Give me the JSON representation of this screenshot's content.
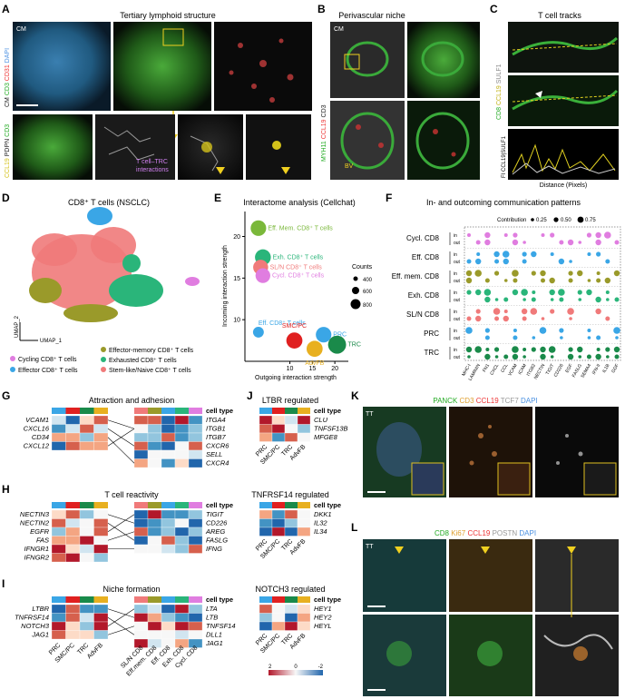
{
  "panels": {
    "A": {
      "letter": "A",
      "title": "Tertiary lymphoid structure",
      "stain_top": [
        {
          "t": "CM",
          "c": "#ffffff"
        },
        {
          "t": "CD3",
          "c": "#22aa22"
        },
        {
          "t": "CD31",
          "c": "#ee3333"
        },
        {
          "t": "DAPI",
          "c": "#4a90e2"
        }
      ],
      "stain_bottom": [
        {
          "t": "CCL19",
          "c": "#d4c21a"
        },
        {
          "t": "PDPN",
          "c": "#ffffff"
        },
        {
          "t": "CD3",
          "c": "#22aa22"
        }
      ],
      "cm_label": "CM",
      "interaction_label_1": "T cell–TRC",
      "interaction_label_2": "interactions"
    },
    "B": {
      "letter": "B",
      "title": "Perivascular niche",
      "stain": [
        {
          "t": "MYH11",
          "c": "#22aa22"
        },
        {
          "t": "CCL19",
          "c": "#ee3333"
        },
        {
          "t": "CD3",
          "c": "#ffffff"
        }
      ],
      "cm_label": "CM",
      "bv_label": "BV"
    },
    "C": {
      "letter": "C",
      "title": "T cell tracks",
      "stain": [
        {
          "t": "CD8",
          "c": "#22aa22"
        },
        {
          "t": "CCL19",
          "c": "#d4c21a"
        },
        {
          "t": "SULF1",
          "c": "#ffffff"
        }
      ],
      "fi_label": "FI CCL19|SULF1",
      "x_label": "Distance (Pixels)"
    },
    "D": {
      "letter": "D",
      "title": "CD8⁺ T cells (NSCLC)",
      "umap1": "UMAP_1",
      "umap2": "UMAP_2",
      "legend": [
        {
          "label": "Cycling CD8⁺ T cells",
          "color": "#e07de0"
        },
        {
          "label": "Effector-memory CD8⁺ T cells",
          "color": "#9a9a2a"
        },
        {
          "label": "Effector CD8⁺ T cells",
          "color": "#3aa6e6"
        },
        {
          "label": "Exhausted CD8⁺ T cells",
          "color": "#2ab57a"
        },
        {
          "label": "Stem-like/Naive CD8⁺ T cells",
          "color": "#f07a7a"
        }
      ]
    },
    "E": {
      "letter": "E",
      "title": "Interactome analysis (Cellchat)",
      "xlabel": "Outgoing interaction strength",
      "ylabel": "Incoming interaction strength",
      "counts_title": "Counts",
      "counts": [
        "400",
        "600",
        "800"
      ]
    },
    "F": {
      "letter": "F",
      "title": "In- and outcoming communication patterns",
      "contribution_label": "Contribution",
      "contrib_values": [
        "0.25",
        "0.50",
        "0.75"
      ],
      "rows": [
        "Cycl. CD8",
        "Eff. CD8",
        "Eff. mem. CD8",
        "Exh. CD8",
        "SL/N CD8",
        "PRC",
        "TRC"
      ],
      "row_colors": [
        "#e07de0",
        "#3aa6e6",
        "#9a9a2a",
        "#2ab57a",
        "#f07a7a",
        "#3aa6e6",
        "#1a8a4a"
      ],
      "genes": [
        "MHC-I",
        "LAMININ",
        "FN1",
        "CXCL",
        "CCL",
        "VCAM",
        "ICAM",
        "ITGB2",
        "NECTIN",
        "TIGIT",
        "CD226",
        "EGF",
        "FASLG",
        "SEMA4",
        "IFN-II",
        "IL1B",
        "GDF"
      ],
      "in": "in",
      "out": "out"
    },
    "G": {
      "letter": "G",
      "title": "Attraction and adhesion",
      "left_genes": [
        "VCAM1",
        "CXCL16",
        "CD34",
        "CXCL12"
      ],
      "right_genes": [
        "ITGA4",
        "ITGB1",
        "ITGB7",
        "CXCR6",
        "SELL",
        "CXCR4"
      ],
      "cell_type": "cell type"
    },
    "H": {
      "letter": "H",
      "title": "T cell reactivity",
      "left_genes": [
        "NECTIN3",
        "NECTIN2",
        "EGFR",
        "FAS",
        "IFNGR1",
        "IFNGR2"
      ],
      "right_genes": [
        "TIGIT",
        "CD226",
        "AREG",
        "FASLG",
        "IFNG"
      ],
      "cell_type": "cell type"
    },
    "I": {
      "letter": "I",
      "title": "Niche formation",
      "left_genes": [
        "LTBR",
        "TNFRSF14",
        "NOTCH3",
        "JAG1"
      ],
      "right_genes": [
        "LTA",
        "LTB",
        "TNFSF14",
        "DLL1",
        "JAG1"
      ],
      "cell_type": "cell type",
      "left_xlabels": [
        "PRC",
        "SMC/PC",
        "TRC",
        "AdvFB"
      ],
      "right_xlabels": [
        "SL/N CD8",
        "Eff.mem. CD8",
        "Eff. CD8",
        "Exh. CD8",
        "Cycl. CD8"
      ]
    },
    "J": {
      "letter": "J",
      "title": "LTBR regulated",
      "cell_type": "cell type",
      "genes": [
        "CLU",
        "TNFSF13B",
        "MFGE8"
      ],
      "sub2_title": "TNFRSF14 regulated",
      "sub2_genes": [
        "DKK1",
        "IL32",
        "IL34"
      ],
      "sub3_title": "NOTCH3 regulated",
      "sub3_genes": [
        "HEY1",
        "HEY2",
        "HEYL"
      ],
      "xlabels": [
        "PRC",
        "SMC/PC",
        "TRC",
        "AdvFB"
      ],
      "scale": [
        "2",
        "0",
        "-2"
      ]
    },
    "K": {
      "letter": "K",
      "tt": "TT",
      "stain": [
        {
          "t": "PANCK",
          "c": "#22aa22"
        },
        {
          "t": "CD3",
          "c": "#e0a030"
        },
        {
          "t": "CCL19",
          "c": "#ee3333"
        },
        {
          "t": "TCF7",
          "c": "#aaaaaa"
        },
        {
          "t": "DAPI",
          "c": "#4a90e2"
        }
      ]
    },
    "L": {
      "letter": "L",
      "tt": "TT",
      "stain": [
        {
          "t": "CD8",
          "c": "#22aa22"
        },
        {
          "t": "Ki67",
          "c": "#e0a030"
        },
        {
          "t": "CCL19",
          "c": "#ee3333"
        },
        {
          "t": "POSTN",
          "c": "#aaaaaa"
        },
        {
          "t": "DAPI",
          "c": "#4a90e2"
        }
      ]
    }
  },
  "chart_data": [
    {
      "type": "scatter",
      "title": "Interactome analysis (Cellchat)",
      "xlabel": "Outgoing interaction strength",
      "ylabel": "Incoming interaction strength",
      "xlim": [
        0,
        23
      ],
      "ylim": [
        5,
        23
      ],
      "xticks": [
        10,
        15,
        20
      ],
      "yticks": [
        10,
        15,
        20
      ],
      "points": [
        {
          "label": "Eff. Mem. CD8⁺ T cells",
          "x": 3,
          "y": 21,
          "count": 550,
          "color": "#7ab83a"
        },
        {
          "label": "Exh. CD8⁺ T cells",
          "x": 4,
          "y": 17.5,
          "count": 580,
          "color": "#2ab57a"
        },
        {
          "label": "SL/N CD8⁺ T cells",
          "x": 3.5,
          "y": 16.3,
          "count": 500,
          "color": "#f07a7a"
        },
        {
          "label": "Cycl. CD8⁺ T cells",
          "x": 4,
          "y": 15.3,
          "count": 480,
          "color": "#e07de0"
        },
        {
          "label": "Eff. CD8⁺ T cells",
          "x": 3,
          "y": 8.5,
          "count": 200,
          "color": "#3aa6e6"
        },
        {
          "label": "SMC/PC",
          "x": 11,
          "y": 7.5,
          "count": 600,
          "color": "#e02020"
        },
        {
          "label": "AdvFB",
          "x": 15.5,
          "y": 6.5,
          "count": 600,
          "color": "#e8b020"
        },
        {
          "label": "PRC",
          "x": 17.5,
          "y": 8.2,
          "count": 550,
          "color": "#3aa6e6"
        },
        {
          "label": "TRC",
          "x": 20.5,
          "y": 7,
          "count": 800,
          "color": "#1a8a4a"
        }
      ]
    }
  ]
}
